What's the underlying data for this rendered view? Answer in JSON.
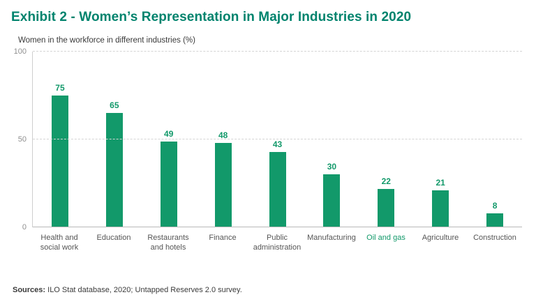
{
  "title": "Exhibit 2 - Women’s Representation in Major Industries in 2020",
  "subtitle": "Women in the workforce in different industries (%)",
  "source": {
    "label": "Sources:",
    "text": " ILO Stat database, 2020; Untapped Reserves 2.0 survey."
  },
  "colors": {
    "title": "#00836d",
    "bar": "#12996a",
    "value_label": "#12996a",
    "highlight_label": "#12996a",
    "axis_label": "#555555",
    "tick_label": "#8f8f8f"
  },
  "chart_data": {
    "type": "bar",
    "title": "Women in the workforce in different industries (%)",
    "categories": [
      "Health and social work",
      "Education",
      "Restaurants and hotels",
      "Finance",
      "Public administration",
      "Manufacturing",
      "Oil and gas",
      "Agriculture",
      "Construction"
    ],
    "values": [
      75,
      65,
      49,
      48,
      43,
      30,
      22,
      21,
      8
    ],
    "highlight_category": "Oil and gas",
    "xlabel": "",
    "ylabel": "",
    "yticks": [
      0,
      50,
      100
    ],
    "ylim": [
      0,
      100
    ],
    "grid": "dashed horizontal gridlines at 50 and 100, solid baseline at 0",
    "legend": "none",
    "bar_color": "#12996a"
  }
}
